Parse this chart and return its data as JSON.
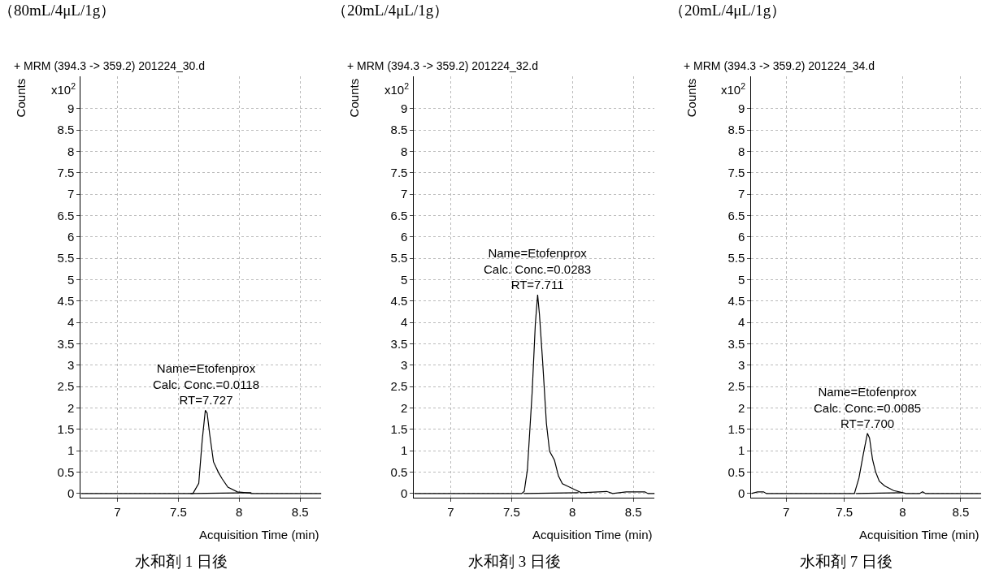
{
  "chart_data": [
    {
      "type": "line",
      "title": "（80mL/4μL/1g）",
      "subtitle": "+ MRM (394.3 -> 359.2) 201224_30.d",
      "xlabel": "Acquisition Time (min)",
      "ylabel": "Counts",
      "xlim": [
        6.7,
        8.675
      ],
      "xticks": [
        7,
        7.5,
        8,
        8.5
      ],
      "ylim": [
        -0.1,
        9.75
      ],
      "yticks": [
        0,
        0.5,
        1,
        1.5,
        2,
        2.5,
        3,
        3.5,
        4,
        4.5,
        5,
        5.5,
        6,
        6.5,
        7,
        7.5,
        8,
        8.5,
        9
      ],
      "grid": true,
      "marker": "none",
      "line_style": "solid",
      "series": [
        {
          "color": "#000000",
          "x": [
            6.7,
            7.58,
            7.62,
            7.668,
            7.696,
            7.722,
            7.737,
            7.758,
            7.789,
            7.83,
            7.861,
            7.907,
            7.985,
            8.09,
            8.1,
            8.675
          ],
          "values": [
            0,
            0,
            0,
            0.24,
            1.24,
            1.95,
            1.88,
            1.38,
            0.74,
            0.49,
            0.34,
            0.15,
            0.04,
            0.01,
            0,
            0
          ]
        },
        {
          "color": "#000000",
          "x": [
            7.6,
            8.1
          ],
          "values": [
            0,
            0.02
          ]
        }
      ],
      "annotations": [
        {
          "text": "Name=Etofenprox\nCalc. Conc.=0.0118\nRT=7.727",
          "x": 7.727,
          "y": 1.95
        },
        "水和剤 1 日後",
        "x10$^{2}$"
      ]
    },
    {
      "type": "line",
      "title": "（20mL/4μL/1g）",
      "subtitle": "+ MRM (394.3 -> 359.2) 201224_32.d",
      "xlabel": "Acquisition Time (min)",
      "ylabel": "Counts",
      "xlim": [
        6.7,
        8.675
      ],
      "xticks": [
        7,
        7.5,
        8,
        8.5
      ],
      "ylim": [
        -0.1,
        9.75
      ],
      "yticks": [
        0,
        0.5,
        1,
        1.5,
        2,
        2.5,
        3,
        3.5,
        4,
        4.5,
        5,
        5.5,
        6,
        6.5,
        7,
        7.5,
        8,
        8.5,
        9
      ],
      "grid": true,
      "marker": "none",
      "line_style": "solid",
      "series": [
        {
          "color": "#000000",
          "x": [
            6.7,
            7.583,
            7.604,
            7.63,
            7.669,
            7.695,
            7.714,
            7.729,
            7.755,
            7.786,
            7.812,
            7.852,
            7.885,
            7.917,
            7.969,
            8.021,
            8.073,
            8.281,
            8.33,
            8.44,
            8.594,
            8.62,
            8.675
          ],
          "values": [
            0,
            0,
            0.05,
            0.56,
            2.37,
            3.96,
            4.65,
            4.18,
            3.09,
            1.64,
            0.99,
            0.78,
            0.41,
            0.23,
            0.16,
            0.09,
            0.02,
            0.05,
            0,
            0.04,
            0.04,
            0,
            0
          ]
        },
        {
          "color": "#000000",
          "x": [
            7.6,
            8.05
          ],
          "values": [
            0,
            0.02
          ]
        }
      ],
      "annotations": [
        {
          "text": "Name=Etofenprox\nCalc. Conc.=0.0283\nRT=7.711",
          "x": 7.711,
          "y": 4.65
        },
        "水和剤 3 日後",
        "x10$^{2}$"
      ]
    },
    {
      "type": "line",
      "title": "（20mL/4μL/1g）",
      "subtitle": "+ MRM (394.3 -> 359.2) 201224_34.d",
      "xlabel": "Acquisition Time (min)",
      "ylabel": "Counts",
      "xlim": [
        6.7,
        8.675
      ],
      "xticks": [
        7,
        7.5,
        8,
        8.5
      ],
      "ylim": [
        -0.1,
        9.75
      ],
      "yticks": [
        0,
        0.5,
        1,
        1.5,
        2,
        2.5,
        3,
        3.5,
        4,
        4.5,
        5,
        5.5,
        6,
        6.5,
        7,
        7.5,
        8,
        8.5,
        9
      ],
      "grid": true,
      "marker": "none",
      "line_style": "solid",
      "series": [
        {
          "color": "#000000",
          "x": [
            6.7,
            6.753,
            6.805,
            6.83,
            7.586,
            7.625,
            7.664,
            7.698,
            7.716,
            7.742,
            7.768,
            7.8,
            7.846,
            7.924,
            8.003,
            8.03,
            8.146,
            8.172,
            8.198,
            8.675
          ],
          "values": [
            0,
            0.04,
            0.04,
            0,
            0,
            0.36,
            0.94,
            1.41,
            1.3,
            0.8,
            0.51,
            0.29,
            0.18,
            0.07,
            0.02,
            0,
            0,
            0.04,
            0,
            0
          ]
        },
        {
          "color": "#000000",
          "x": [
            7.6,
            8.0
          ],
          "values": [
            0,
            0.02
          ]
        }
      ],
      "annotations": [
        {
          "text": "Name=Etofenprox\nCalc. Conc.=0.0085\nRT=7.700",
          "x": 7.7,
          "y": 1.41
        },
        "水和剤 7 日後",
        "x10$^{2}$"
      ]
    }
  ]
}
